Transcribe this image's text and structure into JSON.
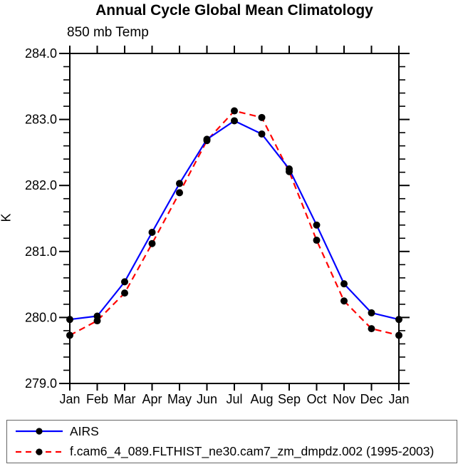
{
  "header": {
    "title": "Annual Cycle Global Mean Climatology",
    "subtitle": "850 mb Temp"
  },
  "chart_data": {
    "type": "line",
    "title": "Annual Cycle Global Mean Climatology",
    "subtitle": "850 mb Temp",
    "xlabel": "",
    "ylabel": "K",
    "ylim": [
      279.0,
      284.0
    ],
    "ytick_interval": 1.0,
    "minor_tick_interval": 0.2,
    "ytick_labels": [
      "284.0",
      "283.0",
      "282.0",
      "281.0",
      "280.0",
      "279.0"
    ],
    "x_categories": [
      "Jan",
      "Feb",
      "Mar",
      "Apr",
      "May",
      "Jun",
      "Jul",
      "Aug",
      "Sep",
      "Oct",
      "Nov",
      "Dec",
      "Jan"
    ],
    "grid": false,
    "legend_position": "bottom",
    "axis_color": "#000000",
    "marker_color": "#000000",
    "series": [
      {
        "name": "AIRS",
        "color": "#0000ff",
        "line_style": "solid",
        "marker": "filled-circle",
        "values": [
          279.97,
          280.02,
          280.54,
          281.29,
          282.03,
          282.7,
          282.98,
          282.78,
          282.25,
          281.4,
          280.51,
          280.07,
          279.97
        ]
      },
      {
        "name": "f.cam6_4_089.FLTHIST_ne30.cam7_zm_dmpdz.002 (1995-2003)",
        "color": "#ff0000",
        "line_style": "dashed",
        "marker": "filled-circle",
        "values": [
          279.73,
          279.95,
          280.37,
          281.12,
          281.89,
          282.68,
          283.13,
          283.03,
          282.21,
          281.17,
          280.25,
          279.83,
          279.73
        ]
      }
    ]
  }
}
